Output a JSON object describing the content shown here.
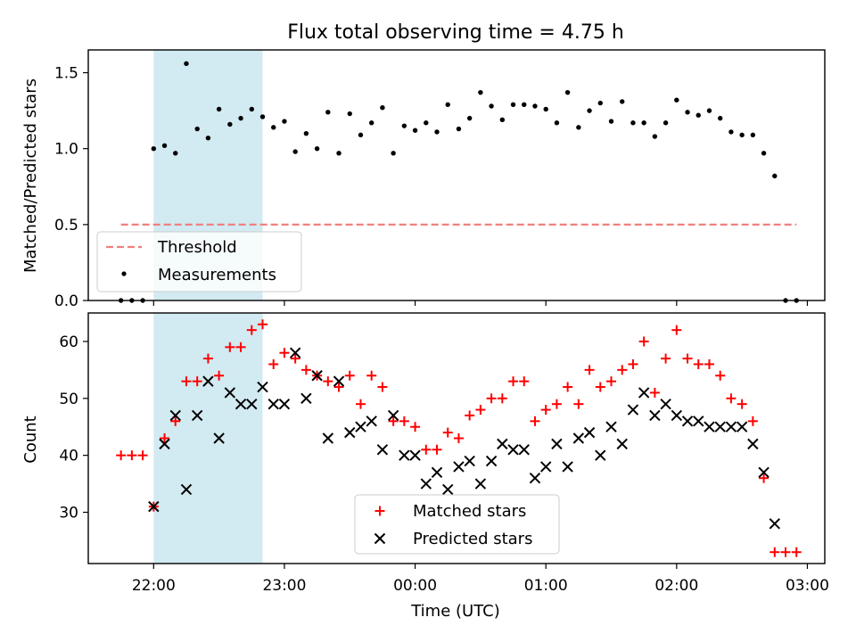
{
  "title": "Flux total observing time = 4.75 h",
  "colors": {
    "shade": "#add8e6",
    "threshold": "#f08080",
    "measurement": "#000000",
    "matched": "#ff0000",
    "predicted": "#000000"
  },
  "x_ticks": [
    "22:00",
    "23:00",
    "00:00",
    "01:00",
    "02:00",
    "03:00"
  ],
  "chart_data": [
    {
      "type": "scatter",
      "panel": "top",
      "ylabel": "Matched/Predicted stars",
      "ylim": [
        0,
        1.65
      ],
      "xlim": [
        "21:30",
        "03:08"
      ],
      "y_ticks": [
        "0.0",
        "0.5",
        "1.0",
        "1.5"
      ],
      "shaded_span": [
        "22:00",
        "22:50"
      ],
      "threshold": {
        "name": "Threshold",
        "value": 0.5,
        "x_range": [
          "21:45",
          "02:55"
        ]
      },
      "legend": {
        "placement": "lower-left",
        "entries": [
          "Threshold",
          "Measurements"
        ]
      },
      "grid": false,
      "series": [
        {
          "name": "Measurements",
          "x": [
            "21:45",
            "21:50",
            "21:55",
            "22:00",
            "22:05",
            "22:10",
            "22:15",
            "22:20",
            "22:25",
            "22:30",
            "22:35",
            "22:40",
            "22:45",
            "22:50",
            "22:55",
            "23:00",
            "23:05",
            "23:10",
            "23:15",
            "23:20",
            "23:25",
            "23:30",
            "23:35",
            "23:40",
            "23:45",
            "23:50",
            "23:55",
            "00:00",
            "00:05",
            "00:10",
            "00:15",
            "00:20",
            "00:25",
            "00:30",
            "00:35",
            "00:40",
            "00:45",
            "00:50",
            "00:55",
            "01:00",
            "01:05",
            "01:10",
            "01:15",
            "01:20",
            "01:25",
            "01:30",
            "01:35",
            "01:40",
            "01:45",
            "01:50",
            "01:55",
            "02:00",
            "02:05",
            "02:10",
            "02:15",
            "02:20",
            "02:25",
            "02:30",
            "02:35",
            "02:40",
            "02:45",
            "02:50",
            "02:55"
          ],
          "y": [
            0.0,
            0.0,
            0.0,
            1.0,
            1.02,
            0.97,
            1.56,
            1.13,
            1.07,
            1.26,
            1.16,
            1.2,
            1.26,
            1.21,
            1.14,
            1.18,
            0.98,
            1.1,
            1.0,
            1.24,
            0.97,
            1.23,
            1.09,
            1.17,
            1.27,
            0.97,
            1.15,
            1.12,
            1.17,
            1.11,
            1.29,
            1.13,
            1.2,
            1.37,
            1.28,
            1.19,
            1.29,
            1.29,
            1.28,
            1.26,
            1.17,
            1.37,
            1.14,
            1.25,
            1.3,
            1.18,
            1.31,
            1.17,
            1.17,
            1.08,
            1.17,
            1.32,
            1.24,
            1.22,
            1.25,
            1.2,
            1.11,
            1.09,
            1.09,
            0.97,
            0.82,
            0.0,
            0.0
          ]
        }
      ]
    },
    {
      "type": "scatter",
      "panel": "bottom",
      "ylabel": "Count",
      "xlabel": "Time (UTC)",
      "ylim": [
        21,
        65
      ],
      "xlim": [
        "21:30",
        "03:08"
      ],
      "y_ticks": [
        "30",
        "40",
        "50",
        "60"
      ],
      "shaded_span": [
        "22:00",
        "22:50"
      ],
      "legend": {
        "placement": "lower-center",
        "entries": [
          "Matched stars",
          "Predicted stars"
        ]
      },
      "grid": false,
      "series": [
        {
          "name": "Matched stars",
          "marker": "plus",
          "x": [
            "21:45",
            "21:50",
            "21:55",
            "22:00",
            "22:05",
            "22:10",
            "22:15",
            "22:20",
            "22:25",
            "22:30",
            "22:35",
            "22:40",
            "22:45",
            "22:50",
            "22:55",
            "23:00",
            "23:05",
            "23:10",
            "23:15",
            "23:20",
            "23:25",
            "23:30",
            "23:35",
            "23:40",
            "23:45",
            "23:50",
            "23:55",
            "00:00",
            "00:05",
            "00:10",
            "00:15",
            "00:20",
            "00:25",
            "00:30",
            "00:35",
            "00:40",
            "00:45",
            "00:50",
            "00:55",
            "01:00",
            "01:05",
            "01:10",
            "01:15",
            "01:20",
            "01:25",
            "01:30",
            "01:35",
            "01:40",
            "01:45",
            "01:50",
            "01:55",
            "02:00",
            "02:05",
            "02:10",
            "02:15",
            "02:20",
            "02:25",
            "02:30",
            "02:35",
            "02:40",
            "02:45",
            "02:50",
            "02:55"
          ],
          "y": [
            40,
            40,
            40,
            31,
            43,
            46,
            53,
            53,
            57,
            54,
            59,
            59,
            62,
            63,
            56,
            58,
            57,
            55,
            54,
            53,
            52,
            54,
            49,
            54,
            52,
            46,
            46,
            45,
            41,
            41,
            44,
            43,
            47,
            48,
            50,
            50,
            53,
            53,
            46,
            48,
            49,
            52,
            49,
            55,
            52,
            53,
            55,
            56,
            60,
            51,
            57,
            62,
            57,
            56,
            56,
            54,
            50,
            49,
            46,
            36,
            23,
            23,
            23
          ]
        },
        {
          "name": "Predicted stars",
          "marker": "x",
          "x": [
            "22:00",
            "22:05",
            "22:10",
            "22:15",
            "22:20",
            "22:25",
            "22:30",
            "22:35",
            "22:40",
            "22:45",
            "22:50",
            "22:55",
            "23:00",
            "23:05",
            "23:10",
            "23:15",
            "23:20",
            "23:25",
            "23:30",
            "23:35",
            "23:40",
            "23:45",
            "23:50",
            "23:55",
            "00:00",
            "00:05",
            "00:10",
            "00:15",
            "00:20",
            "00:25",
            "00:30",
            "00:35",
            "00:40",
            "00:45",
            "00:50",
            "00:55",
            "01:00",
            "01:05",
            "01:10",
            "01:15",
            "01:20",
            "01:25",
            "01:30",
            "01:35",
            "01:40",
            "01:45",
            "01:50",
            "01:55",
            "02:00",
            "02:05",
            "02:10",
            "02:15",
            "02:20",
            "02:25",
            "02:30",
            "02:35",
            "02:40",
            "02:45"
          ],
          "y": [
            31,
            42,
            47,
            34,
            47,
            53,
            43,
            51,
            49,
            49,
            52,
            49,
            49,
            58,
            50,
            54,
            43,
            53,
            44,
            45,
            46,
            41,
            47,
            40,
            40,
            35,
            37,
            34,
            38,
            39,
            35,
            39,
            42,
            41,
            41,
            36,
            38,
            42,
            38,
            43,
            44,
            40,
            45,
            42,
            48,
            51,
            47,
            49,
            47,
            46,
            46,
            45,
            45,
            45,
            45,
            42,
            37,
            28
          ]
        }
      ]
    }
  ]
}
